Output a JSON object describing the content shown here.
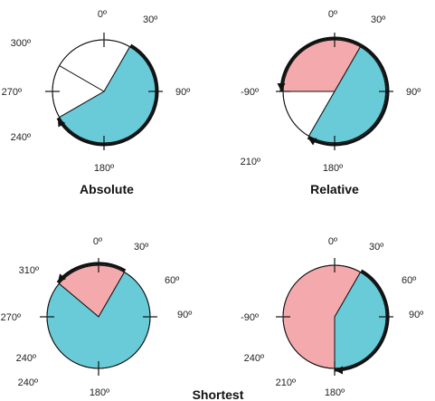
{
  "colors": {
    "blue": "#69cbd8",
    "pink": "#f4aaad",
    "white": "#ffffff",
    "stroke": "#111111"
  },
  "diagrams": [
    {
      "caption": "Absolute",
      "labels": {
        "top": "0º",
        "top_right": "30º",
        "right": "90º",
        "bottom": "180º",
        "left": "270º",
        "extra_a": "300º",
        "extra_b": "240º"
      },
      "sectors": [
        {
          "from": 30,
          "to": 240,
          "fill": "blue"
        },
        {
          "from": 240,
          "to": 300,
          "fill": "white"
        },
        {
          "from": 300,
          "to": 390,
          "fill": "white"
        }
      ],
      "arc": {
        "from": 30,
        "to": 240,
        "arrow_at": "end"
      }
    },
    {
      "caption": "Relative",
      "labels": {
        "top": "0º",
        "top_right": "30º",
        "right": "90º",
        "bottom": "180º",
        "left": "-90º",
        "extra_b": "210º"
      },
      "sectors": [
        {
          "from": 210,
          "to": 270,
          "fill": "white"
        },
        {
          "from": 270,
          "to": 390,
          "fill": "pink"
        },
        {
          "from": 30,
          "to": 210,
          "fill": "blue"
        }
      ],
      "arc": {
        "from": 30,
        "to": 210,
        "arrow_at": "end",
        "second_arc": {
          "from": 270,
          "to": 390,
          "arrow_at": "start"
        }
      }
    },
    {
      "caption": "",
      "labels": {
        "top": "0º",
        "top_right": "30º",
        "extra_r": "60º",
        "right": "90º",
        "bottom": "180º",
        "left": "270º",
        "extra_a": "310º",
        "extra_b": "240º",
        "extra_c": "240º"
      },
      "sectors": [
        {
          "from": 310,
          "to": 390,
          "fill": "pink"
        },
        {
          "from": 30,
          "to": 310,
          "fill": "blue"
        }
      ],
      "arc": {
        "from": 310,
        "to": 390,
        "arrow_at": "start"
      }
    },
    {
      "caption": "",
      "labels": {
        "top": "0º",
        "top_right": "30º",
        "extra_r": "60º",
        "right": "90º",
        "bottom": "180º",
        "left": "-90º",
        "extra_b": "210º",
        "extra_c": "240º"
      },
      "sectors": [
        {
          "from": 30,
          "to": 180,
          "fill": "blue"
        },
        {
          "from": 180,
          "to": 390,
          "fill": "pink"
        }
      ],
      "arc": {
        "from": 30,
        "to": 180,
        "arrow_at": "end"
      }
    }
  ],
  "shared_caption": "Shortest"
}
